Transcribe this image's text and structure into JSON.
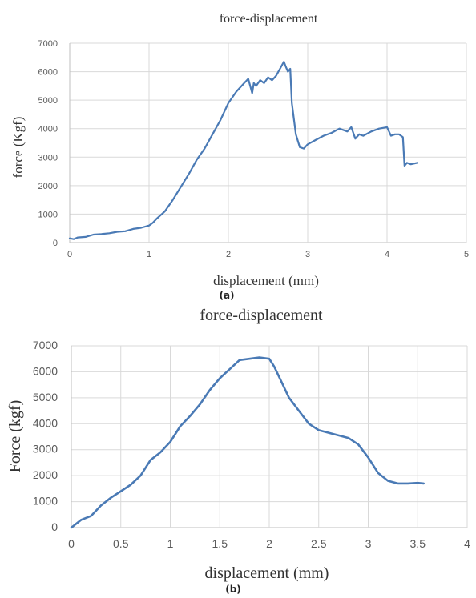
{
  "chart_data": [
    {
      "type": "line",
      "panel_label": "(a)",
      "title": "force-displacement",
      "xlabel": "displacement (mm)",
      "ylabel": "force (Kgf)",
      "xlim": [
        0,
        5
      ],
      "ylim": [
        0,
        7000
      ],
      "xticks": [
        0,
        1,
        2,
        3,
        4,
        5
      ],
      "yticks": [
        0,
        1000,
        2000,
        3000,
        4000,
        5000,
        6000,
        7000
      ],
      "grid": true,
      "series_color": "#4a7ab5",
      "series": [
        {
          "x": [
            0,
            0.05,
            0.1,
            0.2,
            0.3,
            0.4,
            0.5,
            0.6,
            0.7,
            0.8,
            0.9,
            1.0,
            1.05,
            1.1,
            1.2,
            1.3,
            1.4,
            1.5,
            1.6,
            1.7,
            1.8,
            1.9,
            2.0,
            2.1,
            2.2,
            2.25,
            2.3,
            2.32,
            2.35,
            2.4,
            2.45,
            2.5,
            2.55,
            2.6,
            2.65,
            2.7,
            2.72,
            2.75,
            2.78,
            2.8,
            2.85,
            2.9,
            2.95,
            3.0,
            3.1,
            3.2,
            3.3,
            3.4,
            3.5,
            3.55,
            3.6,
            3.65,
            3.7,
            3.8,
            3.9,
            4.0,
            4.05,
            4.1,
            4.15,
            4.2,
            4.22,
            4.25,
            4.3,
            4.38
          ],
          "y": [
            150,
            120,
            180,
            200,
            280,
            300,
            330,
            380,
            400,
            480,
            520,
            600,
            700,
            850,
            1100,
            1500,
            1950,
            2400,
            2900,
            3300,
            3800,
            4300,
            4900,
            5300,
            5600,
            5750,
            5250,
            5600,
            5500,
            5700,
            5600,
            5800,
            5700,
            5850,
            6100,
            6350,
            6200,
            6000,
            6100,
            4900,
            3800,
            3350,
            3300,
            3450,
            3600,
            3750,
            3850,
            4000,
            3900,
            4050,
            3650,
            3800,
            3750,
            3900,
            4000,
            4050,
            3750,
            3800,
            3800,
            3700,
            2700,
            2800,
            2750,
            2800
          ]
        }
      ]
    },
    {
      "type": "line",
      "panel_label": "(b)",
      "title": "force-displacement",
      "xlabel": "displacement (mm)",
      "ylabel": "Force (kgf)",
      "xlim": [
        0,
        4
      ],
      "ylim": [
        0,
        7000
      ],
      "xticks": [
        "0",
        "0.5",
        "1",
        "1.5",
        "2",
        "2.5",
        "3",
        "3.5",
        "4"
      ],
      "yticks": [
        0,
        1000,
        2000,
        3000,
        4000,
        5000,
        6000,
        7000
      ],
      "grid": true,
      "series_color": "#4a7ab5",
      "series": [
        {
          "x": [
            0,
            0.1,
            0.2,
            0.3,
            0.4,
            0.5,
            0.6,
            0.7,
            0.8,
            0.9,
            1.0,
            1.1,
            1.2,
            1.3,
            1.4,
            1.5,
            1.6,
            1.7,
            1.8,
            1.9,
            2.0,
            2.05,
            2.1,
            2.2,
            2.3,
            2.4,
            2.5,
            2.6,
            2.7,
            2.8,
            2.9,
            3.0,
            3.1,
            3.2,
            3.3,
            3.4,
            3.5,
            3.56
          ],
          "y": [
            0,
            300,
            450,
            850,
            1150,
            1400,
            1650,
            2000,
            2600,
            2900,
            3300,
            3900,
            4300,
            4750,
            5300,
            5750,
            6100,
            6450,
            6500,
            6550,
            6500,
            6200,
            5800,
            5000,
            4500,
            4000,
            3750,
            3650,
            3550,
            3450,
            3200,
            2700,
            2100,
            1800,
            1700,
            1700,
            1720,
            1700
          ]
        }
      ]
    }
  ]
}
